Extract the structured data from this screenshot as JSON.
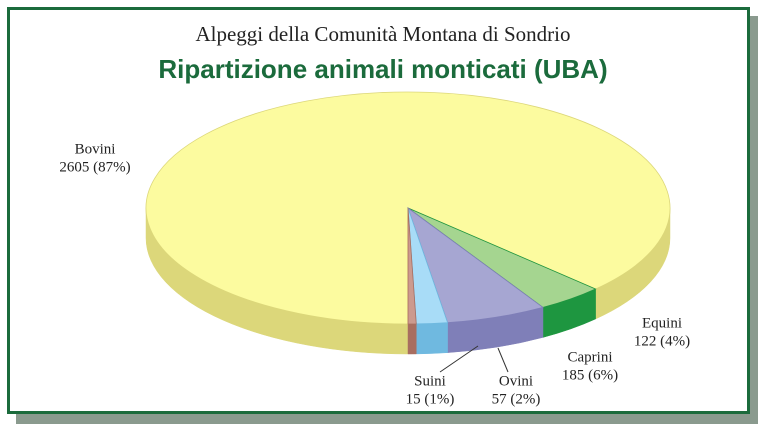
{
  "chart_data": {
    "type": "pie",
    "title": "Alpeggi della Comunità Montana di Sondrio",
    "subtitle": "Ripartizione animali monticati (UBA)",
    "categories": [
      "Bovini",
      "Equini",
      "Caprini",
      "Ovini",
      "Suini"
    ],
    "values": [
      2605,
      122,
      185,
      57,
      15
    ],
    "value_labels": [
      "2605 (87%)",
      "122 (4%)",
      "185 (6%)",
      "57 (2%)",
      "15 (1%)"
    ],
    "colors": [
      "#fcfb9f",
      "#a5d590",
      "#a6a6d2",
      "#a8dcf7",
      "#cc9a8e"
    ],
    "side_colors": [
      "#dcd77a",
      "#1e9640",
      "#7f7fb8",
      "#6fb9e0",
      "#a86e60"
    ]
  }
}
